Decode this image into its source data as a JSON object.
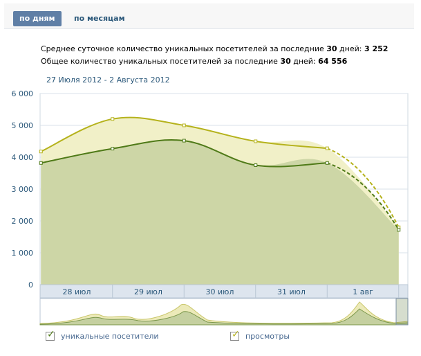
{
  "tabs": {
    "by_days": "по дням",
    "by_months": "по месяцам"
  },
  "stats": {
    "avg_prefix": "Среднее суточное количество уникальных посетителей за последние ",
    "avg_days": "30",
    "avg_mid": " дней: ",
    "avg_value": "3 252",
    "total_prefix": "Общее количество уникальных посетителей за последние ",
    "total_days": "30",
    "total_mid": " дней: ",
    "total_value": "64 556"
  },
  "date_range": "27 Июля 2012 - 2 Августа 2012",
  "legend": {
    "unique": "уникальные посетители",
    "views": "просмотры"
  },
  "colors": {
    "unique": "#4f7a18",
    "views": "#b5b21c",
    "unique_fill": "#cdd6a6",
    "views_fill": "#f1f0c8",
    "grid": "#d9e1e8",
    "axis_label": "#2b587a"
  },
  "chart_data": {
    "type": "area",
    "xlabels": [
      "28 июл",
      "29 июл",
      "30 июл",
      "31 июл",
      "1 авг"
    ],
    "ylim": [
      0,
      6000
    ],
    "yticks": [
      "0",
      "1 000",
      "2 000",
      "3 000",
      "4 000",
      "5 000",
      "6 000"
    ],
    "series": [
      {
        "name": "просмотры",
        "points": [
          [
            -0.5,
            4180
          ],
          [
            0.5,
            5200
          ],
          [
            1.5,
            5000
          ],
          [
            2.5,
            4500
          ],
          [
            3.5,
            4280
          ],
          [
            4.5,
            1800
          ]
        ]
      },
      {
        "name": "уникальные посетители",
        "points": [
          [
            -0.5,
            3820
          ],
          [
            0.5,
            4270
          ],
          [
            1.5,
            4520
          ],
          [
            2.5,
            3750
          ],
          [
            3.5,
            3820
          ],
          [
            4.5,
            1720
          ]
        ]
      }
    ]
  }
}
